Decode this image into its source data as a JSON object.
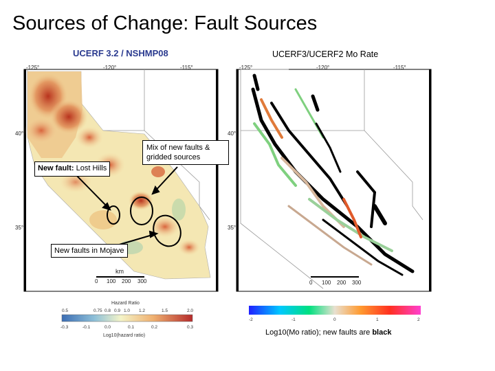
{
  "slide": {
    "title": "Sources of Change: Fault Sources"
  },
  "left_panel": {
    "title": "UCERF 3.2 / NSHMP08",
    "lon_ticks": [
      "-125°",
      "-120°",
      "-115°"
    ],
    "lat_ticks": [
      "40°",
      "35°"
    ],
    "scale_label": "km",
    "scale_ticks": [
      "0",
      "100",
      "200",
      "300"
    ],
    "legend_title": "Hazard Ratio",
    "legend_top_ticks": [
      "0.5",
      "0.75",
      "0.8",
      "0.9",
      "1.0",
      "1.2",
      "1.5",
      "2.0"
    ],
    "legend_bottom_ticks": [
      "-0.3",
      "-0.1",
      "0.0",
      "0.1",
      "0.2",
      "0.3"
    ],
    "legend_caption": "Log10(hazard ratio)"
  },
  "right_panel": {
    "title": "UCERF3/UCERF2 Mo Rate",
    "lon_ticks": [
      "-125°",
      "-120°",
      "-115°"
    ],
    "lat_ticks": [
      "40°",
      "35°"
    ],
    "scale_ticks": [
      "0",
      "100",
      "200",
      "300"
    ],
    "legend_ticks": [
      "-2",
      "-1",
      "0",
      "1",
      "2"
    ],
    "legend_caption_prefix": "Log10(Mo ratio); new faults are",
    "legend_caption_bold": "black"
  },
  "callouts": {
    "lost_hills_bold": "New fault:",
    "lost_hills_rest": " Lost Hills",
    "mix": "Mix of new faults & gridded sources",
    "mojave": "New faults in Mojave"
  },
  "colors": {
    "hazard_high": "#c8402a",
    "hazard_mid": "#f1c27a",
    "hazard_low": "#f7f3c8",
    "left_title": "#2a3a8f"
  }
}
